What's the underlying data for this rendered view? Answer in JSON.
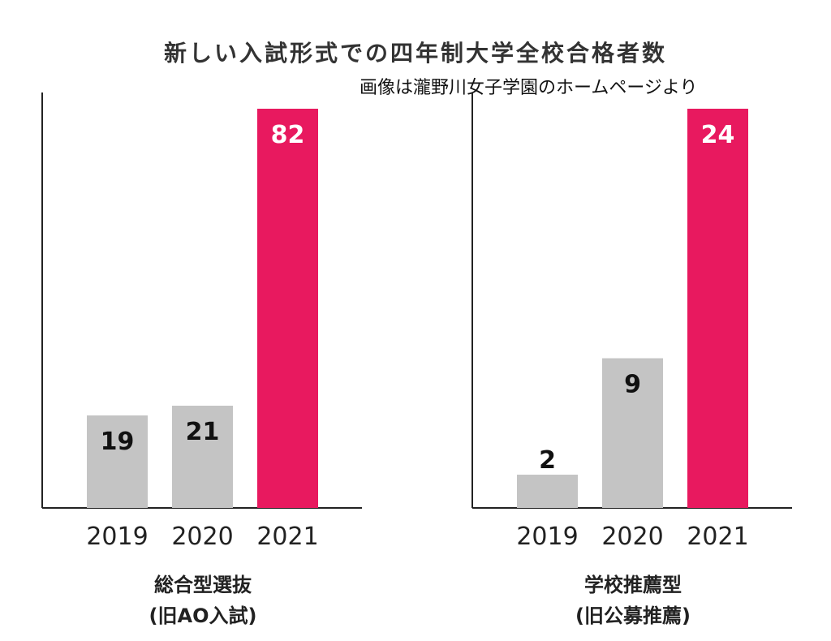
{
  "title": "新しい入試形式での四年制大学全校合格者数",
  "credit": "画像は瀧野川女子学園のホームページより",
  "colors": {
    "past_bar": "#c4c4c4",
    "highlight_bar": "#e8195f",
    "axis": "#222222"
  },
  "chart_data": [
    {
      "type": "bar",
      "title": "総合型選抜",
      "subtitle": "(旧AO入試)",
      "categories": [
        "2019",
        "2020",
        "2021"
      ],
      "values": [
        19,
        21,
        82
      ],
      "highlight": "2021",
      "ylim": [
        0,
        82
      ],
      "grid": false,
      "legend": "none"
    },
    {
      "type": "bar",
      "title": "学校推薦型",
      "subtitle": "(旧公募推薦)",
      "categories": [
        "2019",
        "2020",
        "2021"
      ],
      "values": [
        2,
        9,
        24
      ],
      "highlight": "2021",
      "ylim": [
        0,
        24
      ],
      "grid": false,
      "legend": "none"
    }
  ]
}
